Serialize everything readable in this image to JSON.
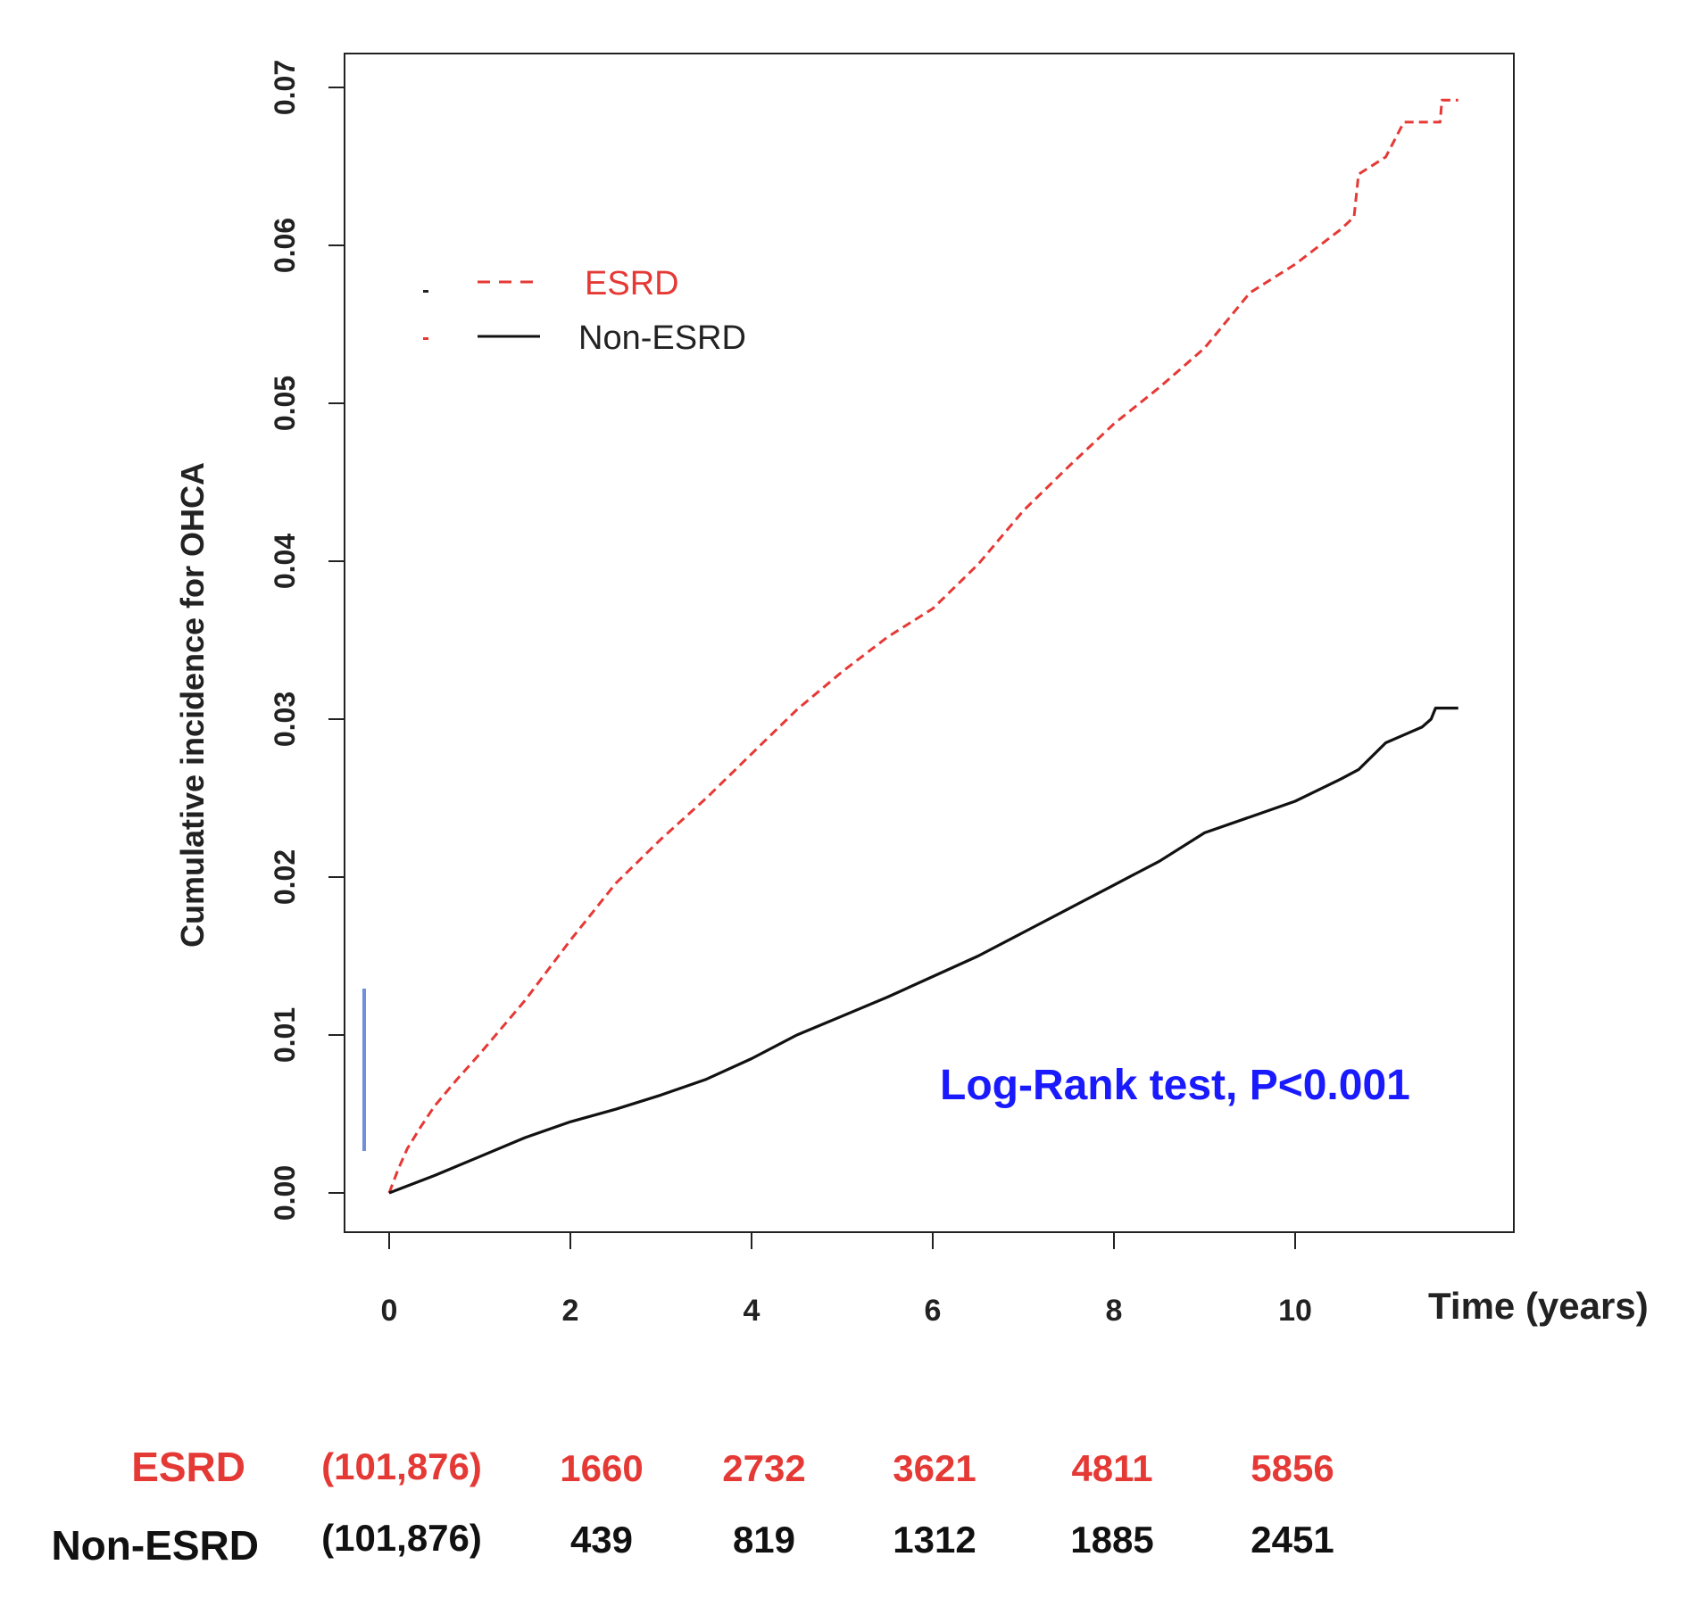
{
  "chart_data": {
    "type": "line",
    "title": "",
    "ylabel": "Cumulative incidence for OHCA",
    "xlabel": "Time (years)",
    "xlim": [
      0,
      12
    ],
    "ylim": [
      0,
      0.07
    ],
    "x_ticks": [
      0,
      2,
      4,
      6,
      8,
      10
    ],
    "x_tick_labels": [
      "0",
      "2",
      "4",
      "6",
      "8",
      "10"
    ],
    "y_ticks": [
      0,
      0.01,
      0.02,
      0.03,
      0.04,
      0.05,
      0.06,
      0.07
    ],
    "y_tick_labels": [
      "0.00",
      "0.01",
      "0.02",
      "0.03",
      "0.04",
      "0.05",
      "0.06",
      "0.07"
    ],
    "legend": {
      "position": "top-left",
      "entries": [
        {
          "name": "ESRD",
          "color": "#e53935",
          "style": "dashed"
        },
        {
          "name": "Non-ESRD",
          "color": "#111111",
          "style": "solid"
        }
      ]
    },
    "annotation": {
      "text": "Log-Rank test, P<0.001",
      "color": "#1a1aff"
    },
    "series": [
      {
        "name": "ESRD",
        "color": "#e53935",
        "style": "dashed",
        "x": [
          0,
          0.1,
          0.2,
          0.35,
          0.5,
          0.75,
          1.0,
          1.5,
          2.0,
          2.5,
          3.0,
          3.5,
          4.0,
          4.5,
          5.0,
          5.5,
          6.0,
          6.5,
          7.0,
          7.5,
          8.0,
          8.5,
          9.0,
          9.5,
          10.0,
          10.5,
          10.65,
          10.7,
          11.0,
          11.2,
          11.6,
          11.62,
          11.8
        ],
        "values": [
          0,
          0.0015,
          0.0028,
          0.0042,
          0.0055,
          0.0072,
          0.0088,
          0.0122,
          0.016,
          0.0196,
          0.0224,
          0.025,
          0.0278,
          0.0306,
          0.033,
          0.0352,
          0.037,
          0.0398,
          0.0432,
          0.046,
          0.0487,
          0.051,
          0.0535,
          0.057,
          0.0588,
          0.061,
          0.0618,
          0.0645,
          0.0656,
          0.0678,
          0.0678,
          0.0692,
          0.0692
        ]
      },
      {
        "name": "Non-ESRD",
        "color": "#111111",
        "style": "solid",
        "x": [
          0,
          0.5,
          1.0,
          1.5,
          2.0,
          2.5,
          3.0,
          3.5,
          4.0,
          4.5,
          5.0,
          5.5,
          6.0,
          6.5,
          7.0,
          7.5,
          8.0,
          8.5,
          9.0,
          9.5,
          10.0,
          10.5,
          10.7,
          11.0,
          11.2,
          11.4,
          11.5,
          11.55,
          11.8
        ],
        "values": [
          0,
          0.0011,
          0.0023,
          0.0035,
          0.0045,
          0.0053,
          0.0062,
          0.0072,
          0.0085,
          0.01,
          0.0112,
          0.0124,
          0.0137,
          0.015,
          0.0165,
          0.018,
          0.0195,
          0.021,
          0.0228,
          0.0238,
          0.0248,
          0.0262,
          0.0268,
          0.0285,
          0.029,
          0.0295,
          0.03,
          0.0307,
          0.0307
        ]
      }
    ]
  },
  "risk_table": {
    "rows": [
      {
        "label": "ESRD",
        "color": "#e53935",
        "values": [
          "(101,876)",
          "1660",
          "2732",
          "3621",
          "4811",
          "5856"
        ]
      },
      {
        "label": "Non-ESRD",
        "color": "#111111",
        "values": [
          "(101,876)",
          "439",
          "819",
          "1312",
          "1885",
          "2451"
        ]
      }
    ]
  },
  "colors": {
    "esrd": "#e53935",
    "non_esrd": "#111111",
    "annotation": "#1a1aff",
    "marker_bar": "#6f8fd8",
    "axis": "#222222"
  }
}
